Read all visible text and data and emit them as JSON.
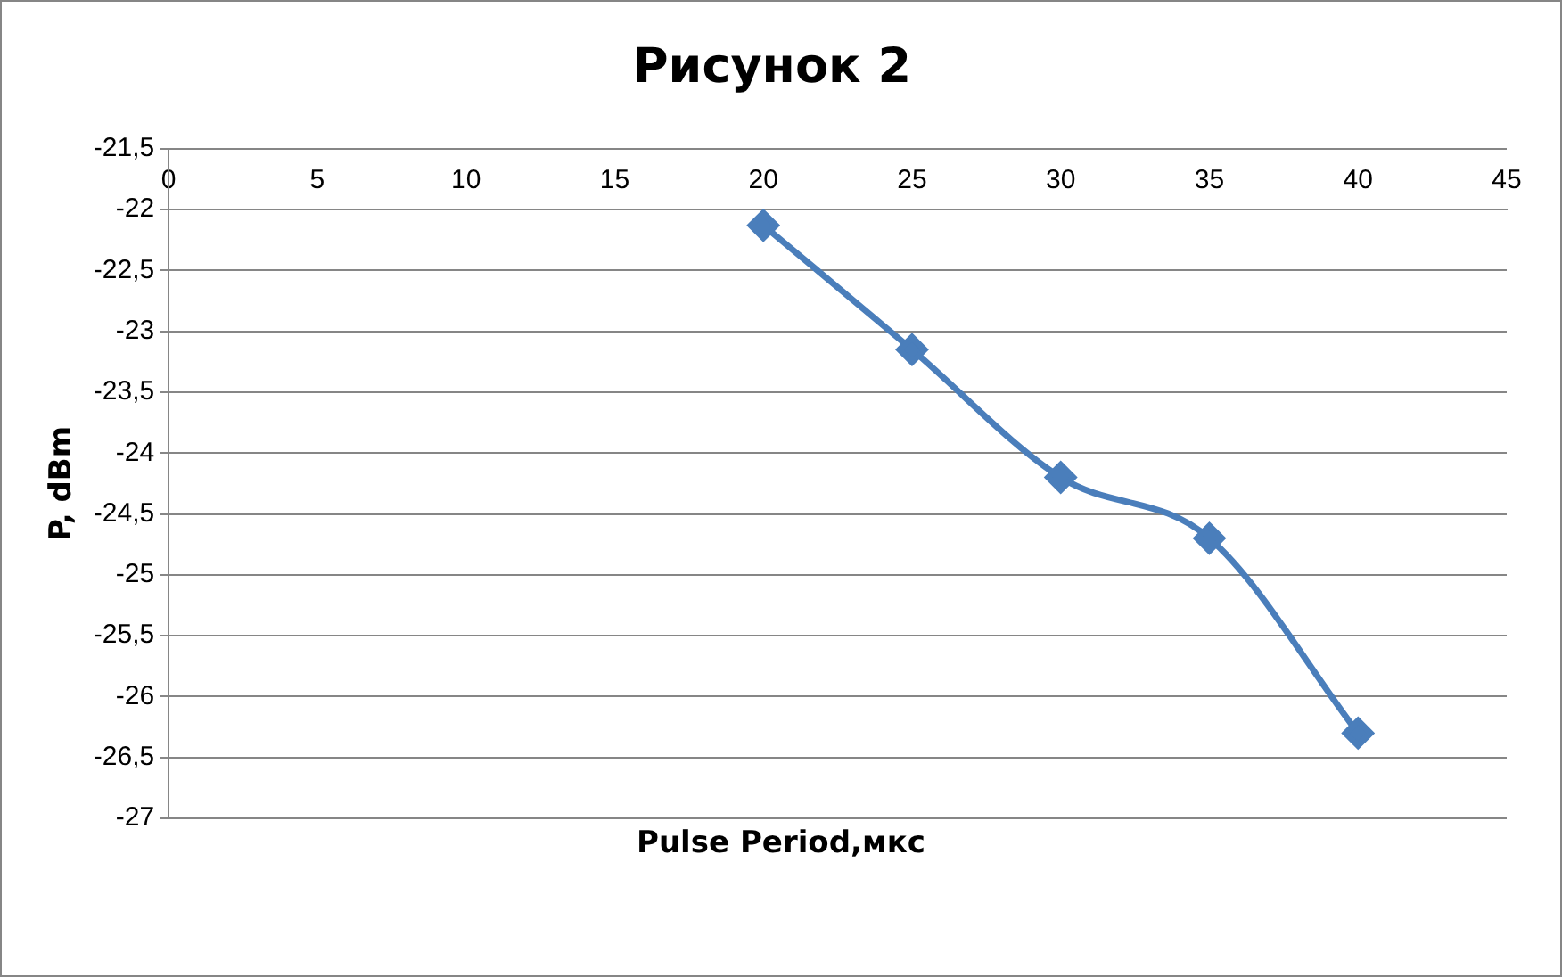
{
  "chart_data": {
    "type": "line",
    "title": "Рисунок 2",
    "xlabel": "Pulse Period,мкс",
    "ylabel": "P, dBm",
    "x": [
      20,
      25,
      30,
      35,
      40
    ],
    "series": [
      {
        "color": "#4a7ebb",
        "values": [
          -22.13,
          -23.15,
          -24.2,
          -24.7,
          -26.3
        ]
      }
    ],
    "xlim": [
      0,
      45
    ],
    "xticks": [
      0,
      5,
      10,
      15,
      20,
      25,
      30,
      35,
      40,
      45
    ],
    "ylim": [
      -27,
      -21.5
    ],
    "yticks": [
      -27,
      {
        "value": -26.5,
        "label": "-26,5"
      },
      -26,
      {
        "value": -25.5,
        "label": "-25,5"
      },
      -25,
      {
        "value": -24.5,
        "label": "-24,5"
      },
      -24,
      {
        "value": -23.5,
        "label": "-23,5"
      },
      -23,
      {
        "value": -22.5,
        "label": "-22,5"
      },
      -22,
      {
        "value": -21.5,
        "label": "-21,5"
      }
    ],
    "grid": "y",
    "marker": "diamond",
    "line_style": "solid",
    "legend": false
  }
}
